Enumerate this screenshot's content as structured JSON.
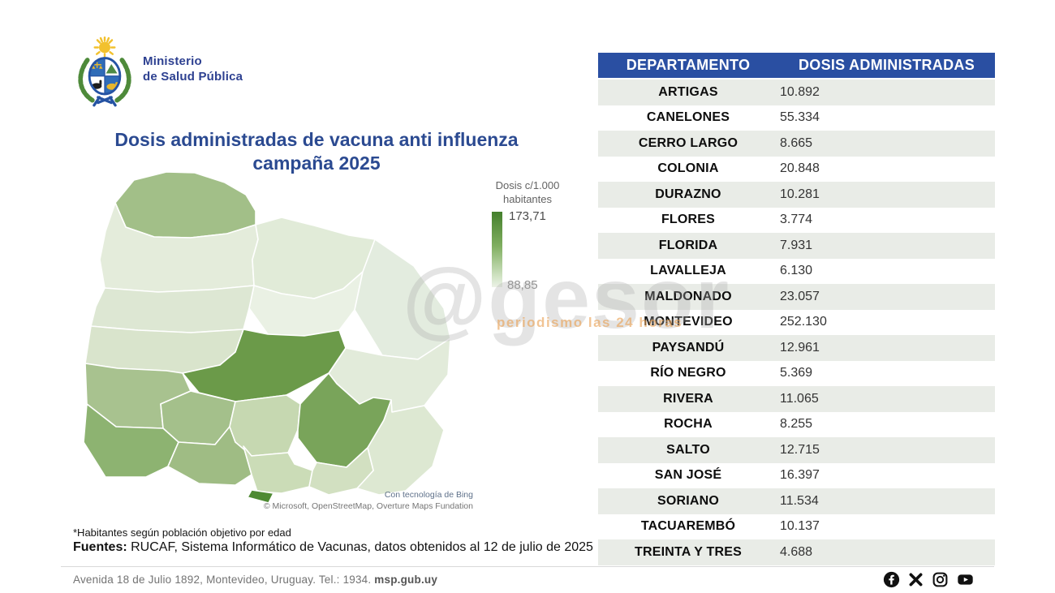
{
  "header": {
    "ministry_line1": "Ministerio",
    "ministry_line2": "de Salud Pública"
  },
  "title": {
    "line1": "Dosis administradas de vacuna anti influenza",
    "line2": "campaña 2025"
  },
  "legend": {
    "label_line1": "Dosis c/1.000",
    "label_line2": "habitantes",
    "max": "173,71",
    "min": "88,85"
  },
  "map": {
    "attribution_line1": "Con tecnología de Bing",
    "attribution_line2": "© Microsoft, OpenStreetMap, Overture Maps Fundation",
    "regions": {
      "artigas": "#a2bf88",
      "salto": "#e4ecdb",
      "rivera": "#e1ebd8",
      "tacuarembo": "#eaf1e4",
      "cerro_largo": "#e3ecdf",
      "paysandu": "#dde7d3",
      "rio_negro": "#d9e4cc",
      "durazno": "#6b9a49",
      "treinta_y_tres": "#e2ebda",
      "soriano": "#a8c28f",
      "flores": "#a4c08b",
      "colonia": "#8db371",
      "san_jose": "#9fbc84",
      "florida": "#c6d8b1",
      "lavalleja": "#79a45a",
      "canelones": "#cbdcb7",
      "montevideo": "#4e8a33",
      "maldonado": "#d2e0c1",
      "rocha": "#dde8d2"
    }
  },
  "watermark": {
    "handle": "@gesor",
    "tagline": "periodismo las 24 horas"
  },
  "table": {
    "headers": [
      "DEPARTAMENTO",
      "DOSIS ADMINISTRADAS"
    ],
    "rows": [
      {
        "department": "ARTIGAS",
        "doses": "10.892"
      },
      {
        "department": "CANELONES",
        "doses": "55.334"
      },
      {
        "department": "CERRO LARGO",
        "doses": "8.665"
      },
      {
        "department": "COLONIA",
        "doses": "20.848"
      },
      {
        "department": "DURAZNO",
        "doses": "10.281"
      },
      {
        "department": "FLORES",
        "doses": "3.774"
      },
      {
        "department": "FLORIDA",
        "doses": "7.931"
      },
      {
        "department": "LAVALLEJA",
        "doses": "6.130"
      },
      {
        "department": "MALDONADO",
        "doses": "23.057"
      },
      {
        "department": "MONTEVIDEO",
        "doses": "252.130"
      },
      {
        "department": "PAYSANDÚ",
        "doses": "12.961"
      },
      {
        "department": "RÍO NEGRO",
        "doses": "5.369"
      },
      {
        "department": "RIVERA",
        "doses": "11.065"
      },
      {
        "department": "ROCHA",
        "doses": "8.255"
      },
      {
        "department": "SALTO",
        "doses": "12.715"
      },
      {
        "department": "SAN JOSÉ",
        "doses": "16.397"
      },
      {
        "department": "SORIANO",
        "doses": "11.534"
      },
      {
        "department": "TACUAREMBÓ",
        "doses": "10.137"
      },
      {
        "department": "TREINTA Y TRES",
        "doses": "4.688"
      }
    ]
  },
  "notes": {
    "footnote": "*Habitantes según población objetivo por edad",
    "sources_label": "Fuentes:",
    "sources_text": " RUCAF, Sistema Informático de Vacunas, datos obtenidos al 12 de julio de 2025"
  },
  "footer": {
    "address": "Avenida 18 de Julio 1892, Montevideo, Uruguay. Tel.: 1934. ",
    "site": "msp.gub.uy",
    "social": [
      "facebook",
      "x",
      "instagram",
      "youtube"
    ]
  },
  "chart_data": {
    "type": "table",
    "title": "Dosis administradas de vacuna anti influenza campaña 2025",
    "columns": [
      "DEPARTAMENTO",
      "DOSIS ADMINISTRADAS"
    ],
    "rows": [
      [
        "ARTIGAS",
        10892
      ],
      [
        "CANELONES",
        55334
      ],
      [
        "CERRO LARGO",
        8665
      ],
      [
        "COLONIA",
        20848
      ],
      [
        "DURAZNO",
        10281
      ],
      [
        "FLORES",
        3774
      ],
      [
        "FLORIDA",
        7931
      ],
      [
        "LAVALLEJA",
        6130
      ],
      [
        "MALDONADO",
        23057
      ],
      [
        "MONTEVIDEO",
        252130
      ],
      [
        "PAYSANDÚ",
        12961
      ],
      [
        "RÍO NEGRO",
        5369
      ],
      [
        "RIVERA",
        11065
      ],
      [
        "ROCHA",
        8255
      ],
      [
        "SALTO",
        12715
      ],
      [
        "SAN JOSÉ",
        16397
      ],
      [
        "SORIANO",
        11534
      ],
      [
        "TACUAREMBÓ",
        10137
      ],
      [
        "TREINTA Y TRES",
        4688
      ]
    ],
    "choropleth_legend": {
      "label": "Dosis c/1.000 habitantes",
      "min": 88.85,
      "max": 173.71
    }
  }
}
